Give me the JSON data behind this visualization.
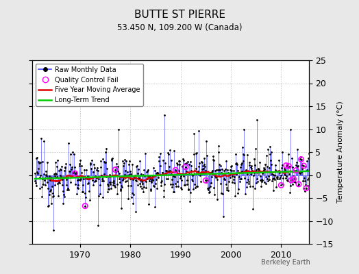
{
  "title": "BUTTE ST PIERRE",
  "subtitle": "53.450 N, 109.200 W (Canada)",
  "ylabel": "Temperature Anomaly (°C)",
  "credit": "Berkeley Earth",
  "ylim": [
    -15,
    25
  ],
  "yticks": [
    -15,
    -10,
    -5,
    0,
    5,
    10,
    15,
    20,
    25
  ],
  "xlim": [
    1960.5,
    2015.5
  ],
  "xticks": [
    1970,
    1980,
    1990,
    2000,
    2010
  ],
  "xticklabels": [
    "1970",
    "1980",
    "1990",
    "2000",
    "2010"
  ],
  "bg_color": "#e8e8e8",
  "plot_bg_color": "#ffffff",
  "line_color": "#4444ff",
  "ma_color": "#dd0000",
  "trend_color": "#00cc00",
  "qc_color": "#ff00ff",
  "seed": 12345,
  "years_start": 1961,
  "years_end": 2015
}
